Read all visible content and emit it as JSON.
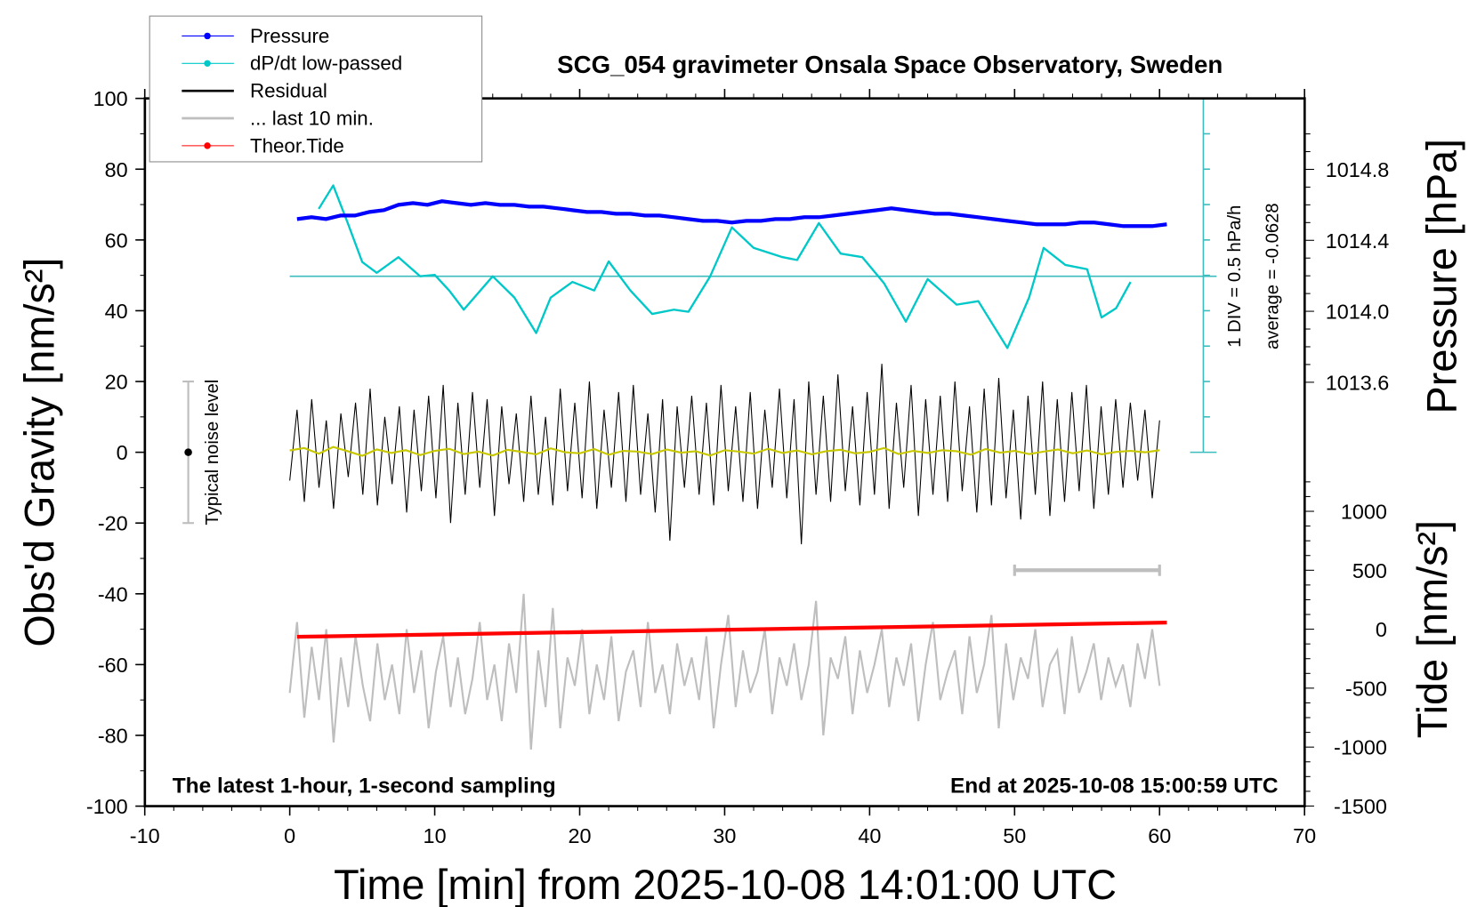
{
  "chart_data": {
    "type": "line",
    "title": "SCG_054 gravimeter Onsala Space Observatory, Sweden",
    "xlabel": "Time [min] from 2025-10-08 14:01:00 UTC",
    "ylabel_left": "Obs'd Gravity [nm/s²]",
    "ylabel_right_top": "Pressure [hPa]",
    "ylabel_right_bottom": "Tide [nm/s²]",
    "xlim": [
      -10,
      70
    ],
    "ylim_left": [
      -100,
      100
    ],
    "x_ticks": [
      "-10",
      "0",
      "10",
      "20",
      "30",
      "40",
      "50",
      "60",
      "70"
    ],
    "y_ticks_left": [
      "100",
      "80",
      "60",
      "40",
      "20",
      "0",
      "-20",
      "-40",
      "-60",
      "-80",
      "-100"
    ],
    "pressure_ticks": [
      "1014.8",
      "1014.4",
      "1014.0",
      "1013.6"
    ],
    "tide_ticks": [
      "1000",
      "500",
      "0",
      "-500",
      "-1000",
      "-1500"
    ],
    "annotation_left": "The latest 1-hour, 1-second sampling",
    "annotation_right": "End at 2025-10-08 15:00:59 UTC",
    "dpdt_scale_label": "1 DIV = 0.5 hPa/h",
    "dpdt_average_label": "average = -0.0628",
    "noise_label": "Typical noise level",
    "noise_level_range": [
      -20,
      20
    ],
    "grid": false,
    "legend_position": "top-left",
    "legend": [
      {
        "label": "Pressure",
        "color": "#0000ff"
      },
      {
        "label": "dP/dt low-passed",
        "color": "#00c8c8"
      },
      {
        "label": "Residual",
        "color": "#000000"
      },
      {
        "label": "... last 10 min.",
        "color": "#bebebe"
      },
      {
        "label": "Theor.Tide",
        "color": "#ff0000"
      }
    ],
    "series": [
      {
        "name": "Pressure",
        "unit": "hPa",
        "x_start": 0.5,
        "x_end": 60.5,
        "values": [
          1014.52,
          1014.53,
          1014.52,
          1014.54,
          1014.54,
          1014.56,
          1014.57,
          1014.6,
          1014.61,
          1014.6,
          1014.62,
          1014.61,
          1014.6,
          1014.61,
          1014.6,
          1014.6,
          1014.59,
          1014.59,
          1014.58,
          1014.57,
          1014.56,
          1014.56,
          1014.55,
          1014.55,
          1014.54,
          1014.54,
          1014.53,
          1014.52,
          1014.51,
          1014.51,
          1014.5,
          1014.51,
          1014.51,
          1014.52,
          1014.52,
          1014.53,
          1014.53,
          1014.54,
          1014.55,
          1014.56,
          1014.57,
          1014.58,
          1014.57,
          1014.56,
          1014.55,
          1014.55,
          1014.54,
          1014.53,
          1014.52,
          1014.51,
          1014.5,
          1014.49,
          1014.49,
          1014.49,
          1014.5,
          1014.5,
          1014.49,
          1014.48,
          1014.48,
          1014.48,
          1014.49
        ]
      },
      {
        "name": "dP/dt low-passed",
        "unit": "hPa/h",
        "x": [
          2,
          3,
          4,
          5,
          6,
          7.5,
          9,
          10,
          11,
          12,
          14,
          15.5,
          17,
          18,
          19.5,
          21,
          22,
          23.5,
          25,
          26.5,
          27.5,
          29,
          30.5,
          32,
          34,
          35,
          36.5,
          38,
          39.5,
          41,
          42.5,
          44,
          46,
          47.5,
          49.5,
          51,
          52,
          53.5,
          55,
          56,
          57,
          58
        ],
        "values": [
          0.95,
          1.28,
          0.75,
          0.2,
          0.05,
          0.27,
          0.0,
          0.02,
          -0.2,
          -0.47,
          0.0,
          -0.3,
          -0.8,
          -0.3,
          -0.08,
          -0.2,
          0.21,
          -0.2,
          -0.53,
          -0.47,
          -0.5,
          0.0,
          0.69,
          0.4,
          0.27,
          0.23,
          0.75,
          0.32,
          0.27,
          -0.1,
          -0.64,
          -0.04,
          -0.4,
          -0.35,
          -1.01,
          -0.3,
          0.4,
          0.16,
          0.1,
          -0.58,
          -0.45,
          -0.08
        ]
      },
      {
        "name": "Residual",
        "unit": "nm/s²",
        "x_start": 0,
        "x_end": 60,
        "values": [
          -8,
          12,
          -14,
          15,
          -10,
          9,
          -16,
          11,
          -7,
          14,
          -12,
          18,
          -15,
          10,
          -9,
          13,
          -17,
          12,
          -11,
          16,
          -13,
          19,
          -20,
          14,
          -12,
          17,
          -10,
          15,
          -18,
          13,
          -9,
          11,
          -14,
          16,
          -12,
          10,
          -15,
          18,
          -11,
          14,
          -13,
          20,
          -16,
          12,
          -10,
          17,
          -14,
          19,
          -12,
          11,
          -17,
          15,
          -25,
          13,
          -10,
          16,
          -12,
          14,
          -15,
          19,
          -11,
          13,
          -14,
          17,
          -16,
          12,
          -10,
          18,
          -13,
          15,
          -26,
          20,
          -12,
          16,
          -14,
          22,
          -11,
          13,
          -15,
          17,
          -12,
          25,
          -16,
          14,
          -10,
          19,
          -18,
          15,
          -12,
          16,
          -14,
          20,
          -11,
          13,
          -17,
          18,
          -15,
          21,
          -13,
          12,
          -19,
          16,
          -12,
          20,
          -18,
          15,
          -14,
          17,
          -11,
          19,
          -16,
          13,
          -12,
          15,
          -10,
          14,
          -8,
          12,
          -13,
          9
        ]
      },
      {
        "name": "Residual smoothed",
        "unit": "nm/s²",
        "color": "#c8c800",
        "x_start": 0,
        "x_end": 60,
        "values": [
          0.5,
          1.2,
          -0.4,
          1.5,
          0.3,
          -1.0,
          0.8,
          -0.2,
          0.6,
          -0.8,
          0.4,
          1.0,
          -0.5,
          0.2,
          -0.9,
          0.7,
          0.1,
          -0.6,
          1.1,
          0.0,
          -0.3,
          0.9,
          -0.7,
          0.4,
          0.2,
          -0.5,
          0.8,
          -0.1,
          0.3,
          -0.9,
          0.6,
          0.2,
          -0.4,
          1.0,
          -0.2,
          0.5,
          -0.6,
          0.3,
          0.7,
          -0.3,
          0.1,
          1.2,
          -0.5,
          0.4,
          -0.2,
          0.6,
          0.3,
          -0.7,
          0.9,
          -0.1,
          0.4,
          -0.5,
          0.2,
          0.8,
          -0.3,
          0.5,
          -0.6,
          0.1,
          0.4,
          0.0,
          0.6
        ]
      },
      {
        "name": "... last 10 min.",
        "unit": "nm/s²",
        "x_start": 0,
        "x_end": 60,
        "values": [
          -68,
          -48,
          -75,
          -55,
          -70,
          -50,
          -82,
          -58,
          -72,
          -52,
          -66,
          -76,
          -54,
          -70,
          -60,
          -74,
          -50,
          -68,
          -56,
          -78,
          -62,
          -52,
          -72,
          -58,
          -74,
          -64,
          -48,
          -70,
          -60,
          -76,
          -54,
          -68,
          -40,
          -84,
          -56,
          -72,
          -44,
          -78,
          -58,
          -66,
          -50,
          -74,
          -60,
          -70,
          -52,
          -76,
          -62,
          -56,
          -72,
          -48,
          -68,
          -60,
          -74,
          -54,
          -66,
          -58,
          -70,
          -52,
          -78,
          -60,
          -46,
          -72,
          -56,
          -68,
          -62,
          -50,
          -74,
          -58,
          -66,
          -54,
          -70,
          -60,
          -42,
          -80,
          -58,
          -64,
          -52,
          -74,
          -56,
          -68,
          -60,
          -50,
          -72,
          -58,
          -66,
          -54,
          -76,
          -60,
          -48,
          -70,
          -62,
          -56,
          -74,
          -52,
          -68,
          -60,
          -46,
          -78,
          -54,
          -70,
          -58,
          -64,
          -50,
          -72,
          -60,
          -56,
          -74,
          -52,
          -68,
          -62,
          -54,
          -70,
          -58,
          -66,
          -60,
          -72,
          -54,
          -64,
          -50,
          -66
        ]
      },
      {
        "name": "Theor.Tide",
        "unit": "nm/s²",
        "x": [
          0.5,
          60.5
        ],
        "values": [
          -64,
          56
        ]
      }
    ],
    "last_10min_bracket": {
      "x": [
        50,
        60
      ],
      "tide_value": 500
    }
  }
}
